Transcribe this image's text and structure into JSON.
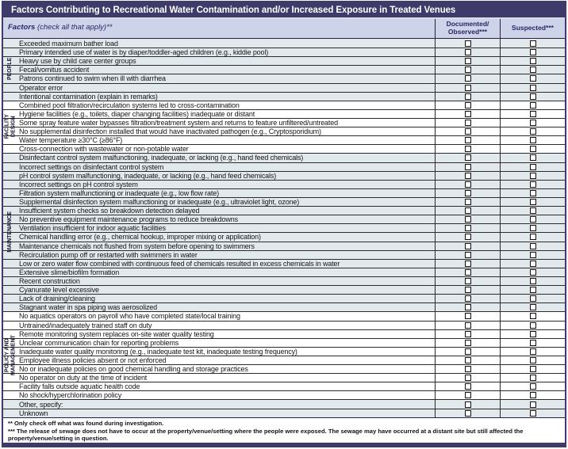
{
  "title": "Factors Contributing to Recreational Water Contamination and/or Increased Exposure in Treated Venues",
  "colors": {
    "frame_navy": "#3e3a6a",
    "subheader_lavender": "#cdd3e9",
    "shaded_row_blue_gray": "#e2e9ec",
    "header_text_navy": "#2a2760"
  },
  "header": {
    "factors_label": "Factors",
    "factors_note": " (check all that apply)**",
    "documented_line1": "Documented/",
    "documented_line2": "Observed***",
    "suspected": "Suspected***"
  },
  "checkbox_state": "unchecked",
  "sections": [
    {
      "label": "PEOPLE",
      "lines": "PEOPLE",
      "shaded": true,
      "rows": [
        "Exceeded maximum bather load",
        "Primary intended use of water is by diaper/toddler-aged children (e.g., kiddie pool)",
        "Heavy use by child care center groups",
        "Fecal/vomitus accident",
        "Patrons continued to swim when ill with diarrhea",
        "Operator error",
        "Intentional contamination (explain in remarks)"
      ]
    },
    {
      "label": "FACILITY DESIGN",
      "lines": "FACILITY\nDESIGN",
      "shaded": false,
      "rows": [
        "Combined pool filtration/recirculation systems led to cross-contamination",
        "Hygiene facilities (e.g., toilets, diaper changing facilities) inadequate or distant",
        "Some spray feature water bypasses filtration/treatment system and returns to feature unfiltered/untreated",
        "No supplemental disinfection installed that would have inactivated pathogen  (e.g., Cryptosporidium)",
        "Water temperature ≥30°C (≥86°F)",
        "Cross-connection with wastewater or non-potable water"
      ]
    },
    {
      "label": "MAINTENANCE",
      "lines": "MAINTENANCE",
      "shaded": true,
      "rows": [
        "Disinfectant control system malfunctioning, inadequate, or lacking (e.g., hand feed chemicals)",
        "Incorrect settings on disinfectant control system",
        "pH control system malfunctioning, inadequate, or lacking (e.g., hand feed chemicals)",
        "Incorrect settings on pH control system",
        "Filtration system malfunctioning or inadequate (e.g., low flow rate)",
        "Supplemental disinfection system malfunctioning or inadequate (e.g., ultraviolet light, ozone)",
        "Insufficient system checks so breakdown detection delayed",
        "No preventive equipment maintenance programs to reduce breakdowns",
        "Ventilation insufficient for indoor aquatic facilities",
        "Chemical handling error (e.g., chemical hookup, improper mixing or application)",
        "Maintenance chemicals not flushed from system before opening to swimmers",
        "Recirculation pump off or restarted with swimmers in water",
        "Low or zero water flow combined with continuous feed of chemicals resulted in excess chemicals in water",
        "Extensive slime/biofilm formation",
        "Recent construction",
        "Cyanurate level excessive",
        "Lack of draining/cleaning",
        "Stagnant water in spa piping was aerosolized"
      ]
    },
    {
      "label": "POLICY AND MANAGEMENT",
      "lines": "POLICY AND\nMANAGEMENT",
      "shaded": false,
      "rows": [
        "No aquatics operators on payroll who have completed state/local training",
        "Untrained/inadequately trained staff on duty",
        "Remote monitoring system replaces on-site water quality testing",
        "Unclear communication chain for reporting problems",
        "Inadequate water quality monitoring (e.g., inadequate test kit, inadequate testing frequency)",
        "Employee illness policies absent or not enforced",
        "No or inadequate policies on good chemical handling and storage practices",
        "No operator on duty at the time of incident",
        "Facility falls outside aquatic health code",
        "No shock/hyperchlorination policy"
      ]
    },
    {
      "label": "",
      "lines": "",
      "shaded": true,
      "rows": [
        "Other, specify:",
        "Unknown"
      ]
    }
  ],
  "footnotes": [
    "** Only check off what was found during investigation.",
    "*** The release of sewage does not have to occur at the property/venue/setting where the people were exposed. The sewage may have occurred at a distant site but still affected the property/venue/setting in question."
  ]
}
